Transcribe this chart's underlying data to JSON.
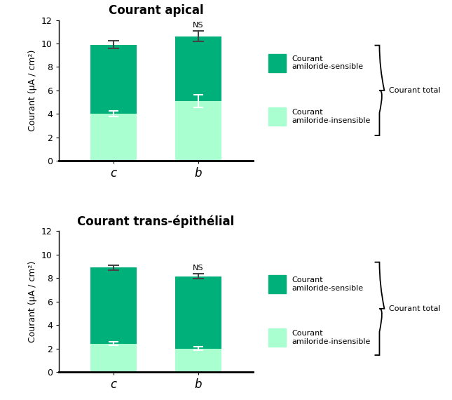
{
  "top": {
    "title": "Courant apical",
    "categories": [
      "c",
      "b"
    ],
    "total": [
      9.9,
      10.6
    ],
    "total_err": [
      0.35,
      0.45
    ],
    "insensible": [
      4.0,
      5.1
    ],
    "insensible_err": [
      0.25,
      0.55
    ],
    "ns_bar": 1,
    "ylim": [
      0,
      12
    ],
    "yticks": [
      0,
      2,
      4,
      6,
      8,
      10,
      12
    ]
  },
  "bottom": {
    "title": "Courant trans-épithélial",
    "categories": [
      "c",
      "b"
    ],
    "total": [
      8.9,
      8.15
    ],
    "total_err": [
      0.2,
      0.2
    ],
    "insensible": [
      2.4,
      2.0
    ],
    "insensible_err": [
      0.15,
      0.15
    ],
    "ns_bar": 1,
    "ylim": [
      0,
      12
    ],
    "yticks": [
      0,
      2,
      4,
      6,
      8,
      10,
      12
    ]
  },
  "color_sensible": "#00B07A",
  "color_insensible": "#AAFFD0",
  "bar_width": 0.55,
  "ylabel": "Courant (μA / cm²)",
  "legend_sensible": "Courant\namiloride-sensible",
  "legend_insensible": "Courant\namiloride-insensible",
  "legend_total": "Courant total",
  "figsize": [
    6.45,
    5.7
  ],
  "dpi": 100
}
